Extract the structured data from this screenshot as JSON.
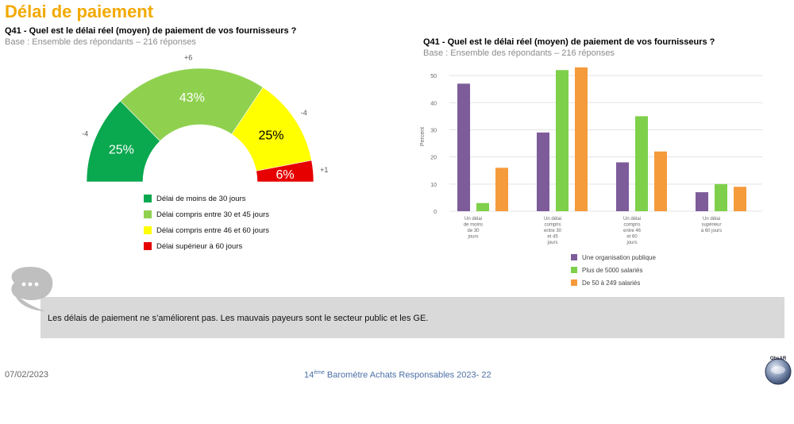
{
  "page": {
    "title": "Délai de paiement",
    "left_question": "Q41 - Quel est le délai réel (moyen) de paiement de vos fournisseurs ?",
    "left_base": "Base : Ensemble des répondants – 216 réponses",
    "right_question": "Q41 - Quel est le délai réel (moyen) de paiement de vos fournisseurs ?",
    "right_base": "Base : Ensemble des répondants – 216 réponses",
    "comment": "Les délais de paiement ne s’améliorent pas. Les mauvais payeurs sont le secteur public et les GE.",
    "footer_date": "07/02/2023",
    "footer_center_num": "14",
    "footer_center_sup": "ème",
    "footer_center_rest": " Baromètre Achats Responsables 2023-  22",
    "logo_text": "ObsAR"
  },
  "colors": {
    "title": "#f2a900",
    "green_dark": "#0aa84f",
    "green_light": "#8fd14f",
    "yellow": "#ffff00",
    "red": "#e60000",
    "purple": "#7e5c9a",
    "green_bar": "#7ed04b",
    "orange": "#f59b3c"
  },
  "chart_data": [
    {
      "type": "pie",
      "subtype": "semi-donut gauge",
      "slices": [
        {
          "label": "Délai de moins de 30 jours",
          "value": 25,
          "display": "25%",
          "delta": "-4",
          "color": "#0aa84f"
        },
        {
          "label": "Délai compris entre 30 et 45 jours",
          "value": 43,
          "display": "43%",
          "delta": "+6",
          "color": "#8fd14f"
        },
        {
          "label": "Délai compris entre 46 et 60 jours",
          "value": 25,
          "display": "25%",
          "delta": "-4",
          "color": "#ffff00"
        },
        {
          "label": "Délai supérieur à 60 jours",
          "value": 6,
          "display": "6%",
          "delta": "+1",
          "color": "#e60000"
        }
      ]
    },
    {
      "type": "bar",
      "categories": [
        [
          "Un délai",
          "de moins",
          "de 30",
          "jours"
        ],
        [
          "Un délai",
          "compris",
          "entre 30",
          "et 45",
          "jours"
        ],
        [
          "Un délai",
          "compris",
          "entre 46",
          "et 60",
          "jours"
        ],
        [
          "Un délai",
          "supérieur",
          "à 60 jours"
        ]
      ],
      "series": [
        {
          "name": "Une organisation publique",
          "color": "#7e5c9a",
          "values": [
            47,
            29,
            18,
            7
          ]
        },
        {
          "name": "Plus de 5000 salariés",
          "color": "#7ed04b",
          "values": [
            3,
            52,
            35,
            10
          ]
        },
        {
          "name": "De 50 à 249 salariés",
          "color": "#f59b3c",
          "values": [
            16,
            53,
            22,
            9
          ]
        }
      ],
      "ylabel": "Percent",
      "yticks": [
        0,
        10,
        20,
        30,
        40,
        50
      ],
      "ylim": [
        0,
        55
      ],
      "grid": true
    }
  ]
}
